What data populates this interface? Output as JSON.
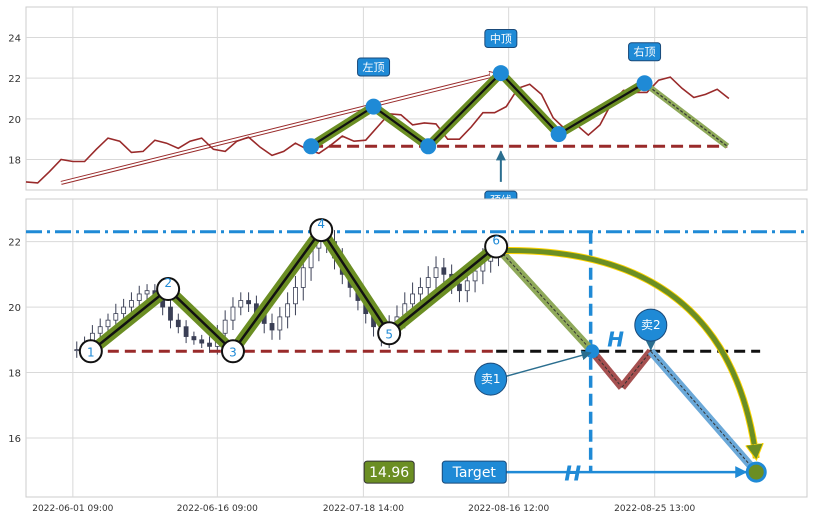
{
  "chart_data": [
    {
      "type": "line",
      "panel": "top",
      "ylim": [
        16.5,
        25.5
      ],
      "yticks": [
        18,
        20,
        22,
        24
      ],
      "grid": true,
      "price_series": {
        "color": "#992a2a",
        "x": [
          0,
          3,
          6,
          9,
          12,
          15,
          18,
          21,
          24,
          27,
          30,
          33,
          36,
          39,
          42,
          45,
          48,
          51,
          54,
          57,
          60,
          63,
          66,
          69,
          72,
          75,
          78,
          81,
          84,
          87,
          90
        ],
        "y": [
          16.9,
          17.4,
          17.9,
          18.5,
          18.9,
          18.4,
          18.8,
          18.9,
          18.5,
          18.9,
          18.6,
          18.4,
          18.5,
          18.7,
          18.9,
          19.6,
          20.2,
          19.8,
          19.0,
          19.6,
          20.3,
          21.5,
          21.2,
          19.5,
          19.2,
          20.8,
          21.3,
          21.9,
          21.5,
          21.2,
          21.0
        ]
      },
      "pattern_points": [
        {
          "x": 36.5,
          "y": 18.65
        },
        {
          "x": 44.5,
          "y": 20.6
        },
        {
          "x": 51.5,
          "y": 18.65
        },
        {
          "x": 60.8,
          "y": 22.25
        },
        {
          "x": 68.2,
          "y": 19.25
        },
        {
          "x": 79.2,
          "y": 21.75
        }
      ],
      "projection_end": {
        "x": 89.8,
        "y": 18.65
      },
      "neckline_y": 18.65,
      "neckline_color": "#992a2a",
      "trend_line": {
        "x1": 4.5,
        "y1": 16.85,
        "x2": 60.5,
        "y2": 22.2
      },
      "labels": [
        {
          "text": "左顶",
          "x": 44.5,
          "y": 22.55
        },
        {
          "text": "中顶",
          "x": 60.8,
          "y": 23.95
        },
        {
          "text": "右顶",
          "x": 79.2,
          "y": 23.3
        },
        {
          "text": "颈线",
          "x": 60.8,
          "y": 16.0
        }
      ],
      "neck_arrow": {
        "x": 60.8,
        "y_from": 16.9,
        "y_to": 18.4
      }
    },
    {
      "type": "candlestick",
      "panel": "bottom",
      "ylim": [
        14.2,
        23.3
      ],
      "yticks": [
        16,
        18,
        20,
        22
      ],
      "grid": true,
      "x_tick_labels": [
        {
          "x": 6,
          "label": "2022-06-01 09:00"
        },
        {
          "x": 24.5,
          "label": "2022-06-16 09:00"
        },
        {
          "x": 43.2,
          "label": "2022-07-18 14:00"
        },
        {
          "x": 61.8,
          "label": "2022-08-16 12:00"
        },
        {
          "x": 80.5,
          "label": "2022-08-25 13:00"
        }
      ],
      "ohlc_x": [
        6.5,
        7.5,
        8.5,
        9.5,
        10.5,
        11.5,
        12.5,
        13.5,
        14.5,
        15.5,
        16.5,
        17.5,
        18.5,
        19.5,
        20.5,
        21.5,
        22.5,
        23.5,
        24.5,
        25.5,
        26.5,
        27.5,
        28.5,
        29.5,
        30.5,
        31.5,
        32.5,
        33.5,
        34.5,
        35.5,
        36.5,
        37.5,
        38.5,
        39.5,
        40.5,
        41.5,
        42.5,
        43.5,
        44.5,
        45.5,
        46.5,
        47.5,
        48.5,
        49.5,
        50.5,
        51.5,
        52.5,
        53.5,
        54.5,
        55.5,
        56.5,
        57.5,
        58.5,
        59.5,
        60.5
      ],
      "ohlc_close": [
        18.7,
        18.9,
        19.2,
        19.4,
        19.6,
        19.8,
        20.0,
        20.2,
        20.4,
        20.5,
        20.3,
        20.0,
        19.6,
        19.4,
        19.1,
        19.0,
        18.9,
        18.8,
        19.2,
        19.6,
        20.0,
        20.2,
        20.1,
        19.8,
        19.5,
        19.3,
        19.7,
        20.1,
        20.6,
        21.2,
        21.8,
        22.3,
        22.0,
        21.5,
        21.0,
        20.6,
        20.2,
        19.8,
        19.4,
        19.1,
        19.4,
        19.7,
        20.1,
        20.4,
        20.6,
        20.9,
        21.2,
        21.0,
        20.7,
        20.5,
        20.8,
        21.1,
        21.4,
        21.6,
        21.8
      ],
      "ohlc_range": [
        0.5,
        0.4,
        0.5,
        0.5,
        0.4,
        0.6,
        0.5,
        0.5,
        0.5,
        0.4,
        0.4,
        0.5,
        0.5,
        0.4,
        0.4,
        0.3,
        0.3,
        0.4,
        0.5,
        0.6,
        0.6,
        0.5,
        0.5,
        0.5,
        0.6,
        0.6,
        0.6,
        0.7,
        0.7,
        0.8,
        0.8,
        0.8,
        0.7,
        0.7,
        0.6,
        0.6,
        0.6,
        0.6,
        0.6,
        0.6,
        0.7,
        0.7,
        0.7,
        0.7,
        0.6,
        0.7,
        0.7,
        0.6,
        0.6,
        0.7,
        0.7,
        0.7,
        0.8,
        0.7,
        0.7
      ],
      "pattern_points": [
        {
          "label": "1",
          "x": 8.3,
          "y": 18.65
        },
        {
          "label": "2",
          "x": 18.2,
          "y": 20.55
        },
        {
          "label": "3",
          "x": 26.5,
          "y": 18.65
        },
        {
          "label": "4",
          "x": 37.8,
          "y": 22.35
        },
        {
          "label": "5",
          "x": 46.5,
          "y": 19.2
        },
        {
          "label": "6",
          "x": 60.2,
          "y": 21.85
        }
      ],
      "projection": [
        {
          "x": 60.2,
          "y": 21.85
        },
        {
          "x": 72.5,
          "y": 18.65
        },
        {
          "x": 76.3,
          "y": 17.55
        },
        {
          "x": 80.0,
          "y": 18.65
        },
        {
          "x": 93.5,
          "y": 14.96
        }
      ],
      "neckline_y": 18.65,
      "top_line_y": 22.3,
      "vertical_line_x": 72.3,
      "target_value": "14.96",
      "target_label": "Target",
      "sell_labels": [
        {
          "text": "卖1",
          "x": 59.5,
          "y": 17.8
        },
        {
          "text": "卖2",
          "x": 80.0,
          "y": 19.45
        }
      ],
      "height_labels": [
        {
          "text": "H",
          "x": 75.5,
          "y": 18.8
        },
        {
          "text": "H",
          "x": 70.0,
          "y": 14.7
        }
      ]
    }
  ]
}
